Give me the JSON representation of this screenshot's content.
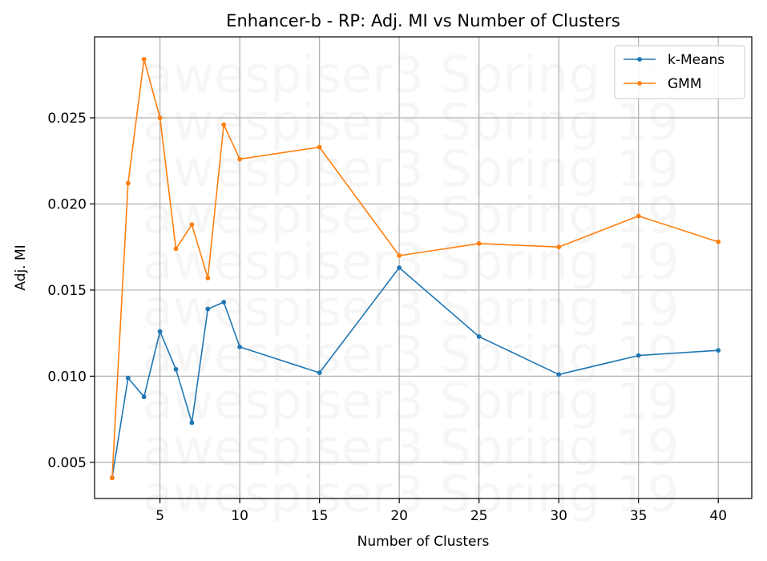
{
  "chart_data": {
    "type": "line",
    "title": "Enhancer-b - RP: Adj. MI vs Number of Clusters",
    "xlabel": "Number of Clusters",
    "ylabel": "Adj. MI",
    "xlim": [
      0.9,
      42.1
    ],
    "ylim": [
      0.0029,
      0.0297
    ],
    "xticks": [
      5,
      10,
      15,
      20,
      25,
      30,
      35,
      40
    ],
    "yticks": [
      0.005,
      0.01,
      0.015,
      0.02,
      0.025
    ],
    "ytick_labels": [
      "0.005",
      "0.010",
      "0.015",
      "0.020",
      "0.025"
    ],
    "grid": true,
    "legend_position": "top-right",
    "x": [
      2,
      3,
      4,
      5,
      6,
      7,
      8,
      9,
      10,
      15,
      20,
      25,
      30,
      35,
      40
    ],
    "series": [
      {
        "name": "k-Means",
        "color": "#1f77b4",
        "values": [
          0.0041,
          0.0099,
          0.0088,
          0.0126,
          0.0104,
          0.0073,
          0.0139,
          0.0143,
          0.0117,
          0.0102,
          0.0163,
          0.0123,
          0.0101,
          0.0112,
          0.0115
        ]
      },
      {
        "name": "GMM",
        "color": "#ff7f0e",
        "values": [
          0.0041,
          0.0212,
          0.0284,
          0.025,
          0.0174,
          0.0188,
          0.0157,
          0.0246,
          0.0226,
          0.0233,
          0.017,
          0.0177,
          0.0175,
          0.0193,
          0.0178
        ]
      }
    ]
  },
  "watermark": {
    "text": "awespiser3 Spring 19"
  }
}
